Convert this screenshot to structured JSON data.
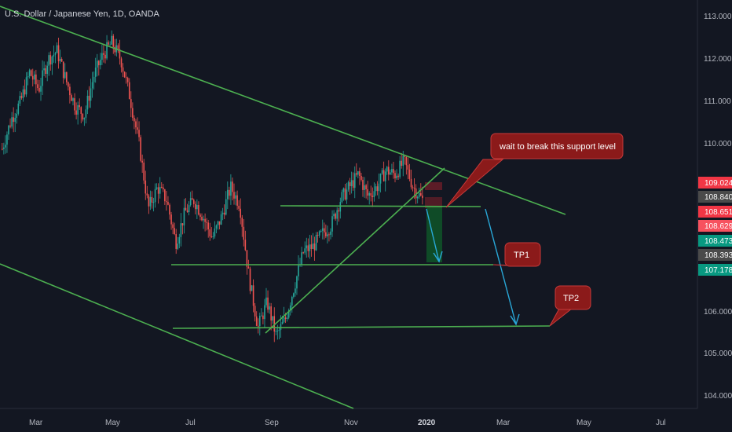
{
  "chart_title": "U.S. Dollar / Japanese Yen, 1D, OANDA",
  "chart_data": {
    "type": "candlestick",
    "y_axis": {
      "ticks": [
        "113.000",
        "112.000",
        "111.000",
        "110.000",
        "106.000",
        "105.000",
        "104.000"
      ],
      "ylim": [
        103.7,
        113.3
      ]
    },
    "x_axis": {
      "ticks": [
        "Mar",
        "May",
        "Jul",
        "Sep",
        "Nov",
        "2020",
        "Mar",
        "May",
        "Jul"
      ]
    },
    "price_labels": [
      {
        "text": "109.024",
        "color": "#f23645"
      },
      {
        "text": "108.840",
        "color": "#4a4a4a"
      },
      {
        "text": "108.651",
        "color": "#f23645"
      },
      {
        "text": "108.629",
        "color": "#f7525f"
      },
      {
        "text": "108.473",
        "color": "#089981"
      },
      {
        "text": "108.393",
        "color": "#4a4a4a"
      },
      {
        "text": "107.178",
        "color": "#089981"
      }
    ],
    "series": [
      {
        "name": "close",
        "values": [
          109.8,
          110.5,
          110.9,
          111.6,
          111.2,
          111.9,
          112.1,
          111.4,
          110.8,
          110.6,
          111.5,
          112.0,
          112.3,
          111.9,
          111.0,
          109.9,
          108.4,
          108.9,
          108.6,
          107.6,
          108.3,
          108.6,
          108.2,
          107.7,
          108.2,
          108.9,
          108.5,
          106.8,
          105.6,
          106.2,
          105.4,
          105.8,
          106.6,
          107.4,
          107.5,
          107.8,
          108.0,
          108.6,
          108.9,
          109.2,
          108.7,
          108.9,
          109.3,
          109.2,
          109.5,
          108.9,
          108.6
        ]
      }
    ],
    "annotations": [
      "wait to break this support level",
      "TP1",
      "TP2"
    ],
    "colors": {
      "background": "#131722",
      "up": "#26a69a",
      "down": "#ef5350",
      "trendline": "#4caf50",
      "arrow": "#2196f3",
      "callout": "#8b1a1a"
    }
  }
}
